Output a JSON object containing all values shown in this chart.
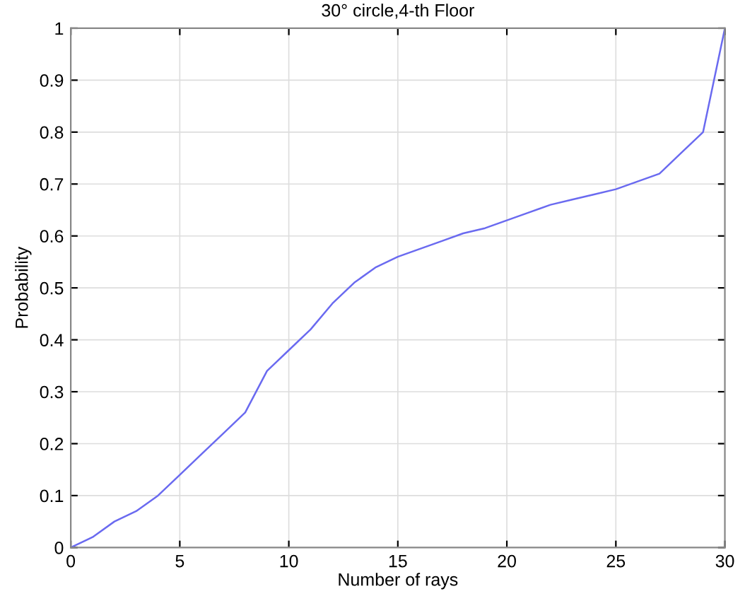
{
  "chart_data": {
    "type": "line",
    "title": "30° circle,4-th Floor",
    "xlabel": "Number of rays",
    "ylabel": "Probability",
    "x": [
      0,
      1,
      2,
      3,
      4,
      5,
      6,
      7,
      8,
      9,
      10,
      11,
      12,
      13,
      14,
      15,
      16,
      17,
      18,
      19,
      20,
      21,
      22,
      23,
      24,
      25,
      26,
      27,
      28,
      29,
      30
    ],
    "series": [
      {
        "color": "#6a6af0",
        "values": [
          0,
          0.02,
          0.05,
          0.07,
          0.1,
          0.14,
          0.18,
          0.22,
          0.26,
          0.34,
          0.38,
          0.42,
          0.47,
          0.51,
          0.54,
          0.56,
          0.575,
          0.59,
          0.605,
          0.615,
          0.63,
          0.645,
          0.66,
          0.67,
          0.68,
          0.69,
          0.705,
          0.72,
          0.76,
          0.8,
          1.0
        ]
      }
    ],
    "xlim": [
      0,
      30
    ],
    "ylim": [
      0,
      1
    ],
    "xticks": [
      0,
      5,
      10,
      15,
      20,
      25,
      30
    ],
    "yticks": [
      0,
      0.1,
      0.2,
      0.3,
      0.4,
      0.5,
      0.6,
      0.7,
      0.8,
      0.9,
      1
    ],
    "grid": true,
    "marker": "none",
    "line_style": "solid"
  }
}
